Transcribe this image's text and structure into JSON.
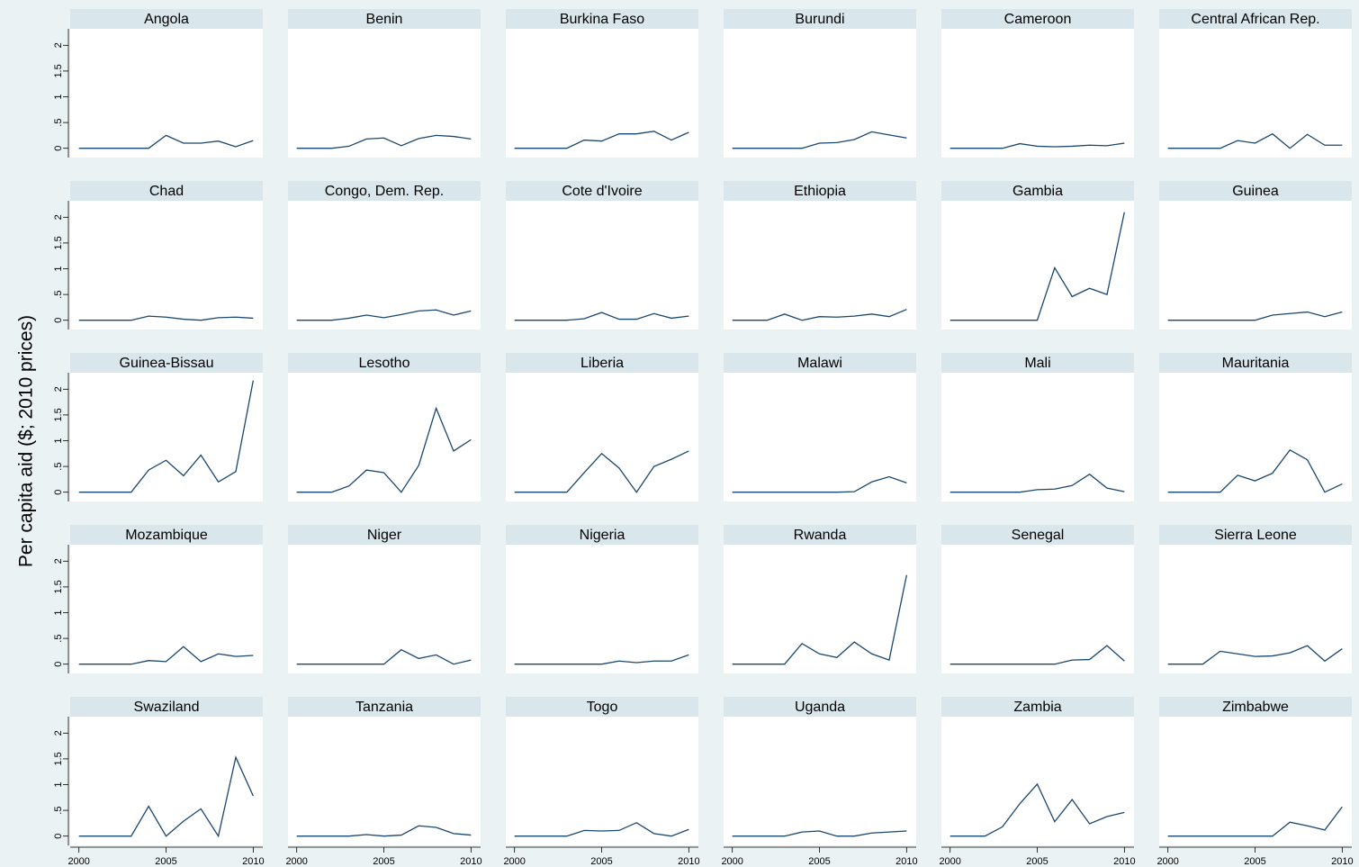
{
  "chart_data": {
    "type": "line",
    "ylabel": "Per capita aid ($; 2010 prices)",
    "x": [
      2000,
      2001,
      2002,
      2003,
      2004,
      2005,
      2006,
      2007,
      2008,
      2009,
      2010
    ],
    "xlim": [
      1999.5,
      2010.55
    ],
    "xticks": [
      2000,
      2005,
      2010
    ],
    "ylim": [
      -0.18,
      2.32
    ],
    "yticks": [
      0,
      {
        "value": 0.5,
        "label": ".5"
      },
      1,
      1.5,
      2
    ],
    "color": "#1a476f",
    "grid": false,
    "series": [
      {
        "name": "Angola",
        "values": [
          0,
          0,
          0,
          0,
          0,
          0.25,
          0.1,
          0.1,
          0.14,
          0.03,
          0.15
        ]
      },
      {
        "name": "Benin",
        "values": [
          0,
          0,
          0,
          0.04,
          0.18,
          0.2,
          0.05,
          0.19,
          0.25,
          0.23,
          0.18
        ]
      },
      {
        "name": "Burkina Faso",
        "values": [
          0,
          0,
          0,
          0,
          0.16,
          0.14,
          0.28,
          0.28,
          0.33,
          0.16,
          0.31
        ]
      },
      {
        "name": "Burundi",
        "values": [
          0,
          0,
          0,
          0,
          0,
          0.1,
          0.11,
          0.17,
          0.32,
          0.26,
          0.2
        ]
      },
      {
        "name": "Cameroon",
        "values": [
          0,
          0,
          0,
          0,
          0.09,
          0.04,
          0.03,
          0.04,
          0.06,
          0.05,
          0.1
        ]
      },
      {
        "name": "Central African Rep.",
        "values": [
          0,
          0,
          0,
          0,
          0.15,
          0.1,
          0.28,
          0,
          0.27,
          0.06,
          0.06
        ]
      },
      {
        "name": "Chad",
        "values": [
          0,
          0,
          0,
          0,
          0.08,
          0.06,
          0.02,
          0,
          0.05,
          0.06,
          0.04
        ]
      },
      {
        "name": "Congo, Dem. Rep.",
        "values": [
          0,
          0,
          0,
          0.04,
          0.1,
          0.05,
          0.11,
          0.18,
          0.2,
          0.1,
          0.18
        ]
      },
      {
        "name": "Cote d'Ivoire",
        "values": [
          0,
          0,
          0,
          0,
          0.03,
          0.15,
          0.02,
          0.02,
          0.13,
          0.04,
          0.08
        ]
      },
      {
        "name": "Ethiopia",
        "values": [
          0,
          0,
          0,
          0.12,
          0,
          0.07,
          0.06,
          0.08,
          0.12,
          0.07,
          0.21
        ]
      },
      {
        "name": "Gambia",
        "values": [
          0,
          0,
          0,
          0,
          0,
          0,
          1.02,
          0.46,
          0.62,
          0.5,
          2.1
        ]
      },
      {
        "name": "Guinea",
        "values": [
          0,
          0,
          0,
          0,
          0,
          0,
          0.1,
          0.13,
          0.16,
          0.07,
          0.16
        ]
      },
      {
        "name": "Guinea-Bissau",
        "values": [
          0,
          0,
          0,
          0,
          0.43,
          0.62,
          0.32,
          0.72,
          0.2,
          0.4,
          2.17
        ]
      },
      {
        "name": "Lesotho",
        "values": [
          0,
          0,
          0,
          0.12,
          0.43,
          0.38,
          0,
          0.52,
          1.63,
          0.8,
          1.02
        ]
      },
      {
        "name": "Liberia",
        "values": [
          0,
          0,
          0,
          0,
          0.38,
          0.75,
          0.47,
          0,
          0.5,
          0.64,
          0.8
        ]
      },
      {
        "name": "Malawi",
        "values": [
          0,
          0,
          0,
          0,
          0,
          0,
          0,
          0.01,
          0.2,
          0.3,
          0.18
        ]
      },
      {
        "name": "Mali",
        "values": [
          0,
          0,
          0,
          0,
          0,
          0.05,
          0.06,
          0.13,
          0.35,
          0.08,
          0.01
        ]
      },
      {
        "name": "Mauritania",
        "values": [
          0,
          0,
          0,
          0,
          0.33,
          0.22,
          0.37,
          0.82,
          0.63,
          0,
          0.16
        ]
      },
      {
        "name": "Mozambique",
        "values": [
          0,
          0,
          0,
          0,
          0.07,
          0.05,
          0.34,
          0.05,
          0.2,
          0.15,
          0.17
        ]
      },
      {
        "name": "Niger",
        "values": [
          0,
          0,
          0,
          0,
          0,
          0,
          0.28,
          0.11,
          0.18,
          0,
          0.08
        ]
      },
      {
        "name": "Nigeria",
        "values": [
          0,
          0,
          0,
          0,
          0,
          0,
          0.06,
          0.03,
          0.06,
          0.06,
          0.18
        ]
      },
      {
        "name": "Rwanda",
        "values": [
          0,
          0,
          0,
          0,
          0.4,
          0.2,
          0.13,
          0.43,
          0.2,
          0.08,
          1.73
        ]
      },
      {
        "name": "Senegal",
        "values": [
          0,
          0,
          0,
          0,
          0,
          0,
          0,
          0.08,
          0.09,
          0.36,
          0.06
        ]
      },
      {
        "name": "Sierra Leone",
        "values": [
          0,
          0,
          0,
          0.25,
          0.2,
          0.15,
          0.16,
          0.22,
          0.36,
          0.06,
          0.3
        ]
      },
      {
        "name": "Swaziland",
        "values": [
          0,
          0,
          0,
          0,
          0.58,
          0,
          0.29,
          0.53,
          0,
          1.53,
          0.78
        ]
      },
      {
        "name": "Tanzania",
        "values": [
          0,
          0,
          0,
          0,
          0.03,
          0,
          0.02,
          0.2,
          0.17,
          0.05,
          0.02
        ]
      },
      {
        "name": "Togo",
        "values": [
          0,
          0,
          0,
          0,
          0.11,
          0.1,
          0.11,
          0.26,
          0.05,
          0,
          0.13
        ]
      },
      {
        "name": "Uganda",
        "values": [
          0,
          0,
          0,
          0,
          0.08,
          0.1,
          0,
          0,
          0.06,
          0.08,
          0.1
        ]
      },
      {
        "name": "Zambia",
        "values": [
          0,
          0,
          0,
          0.18,
          0.63,
          1.01,
          0.28,
          0.71,
          0.24,
          0.38,
          0.46
        ]
      },
      {
        "name": "Zimbabwe",
        "values": [
          0,
          0,
          0,
          0,
          0,
          0,
          0,
          0.27,
          0.2,
          0.12,
          0.57
        ]
      }
    ]
  }
}
